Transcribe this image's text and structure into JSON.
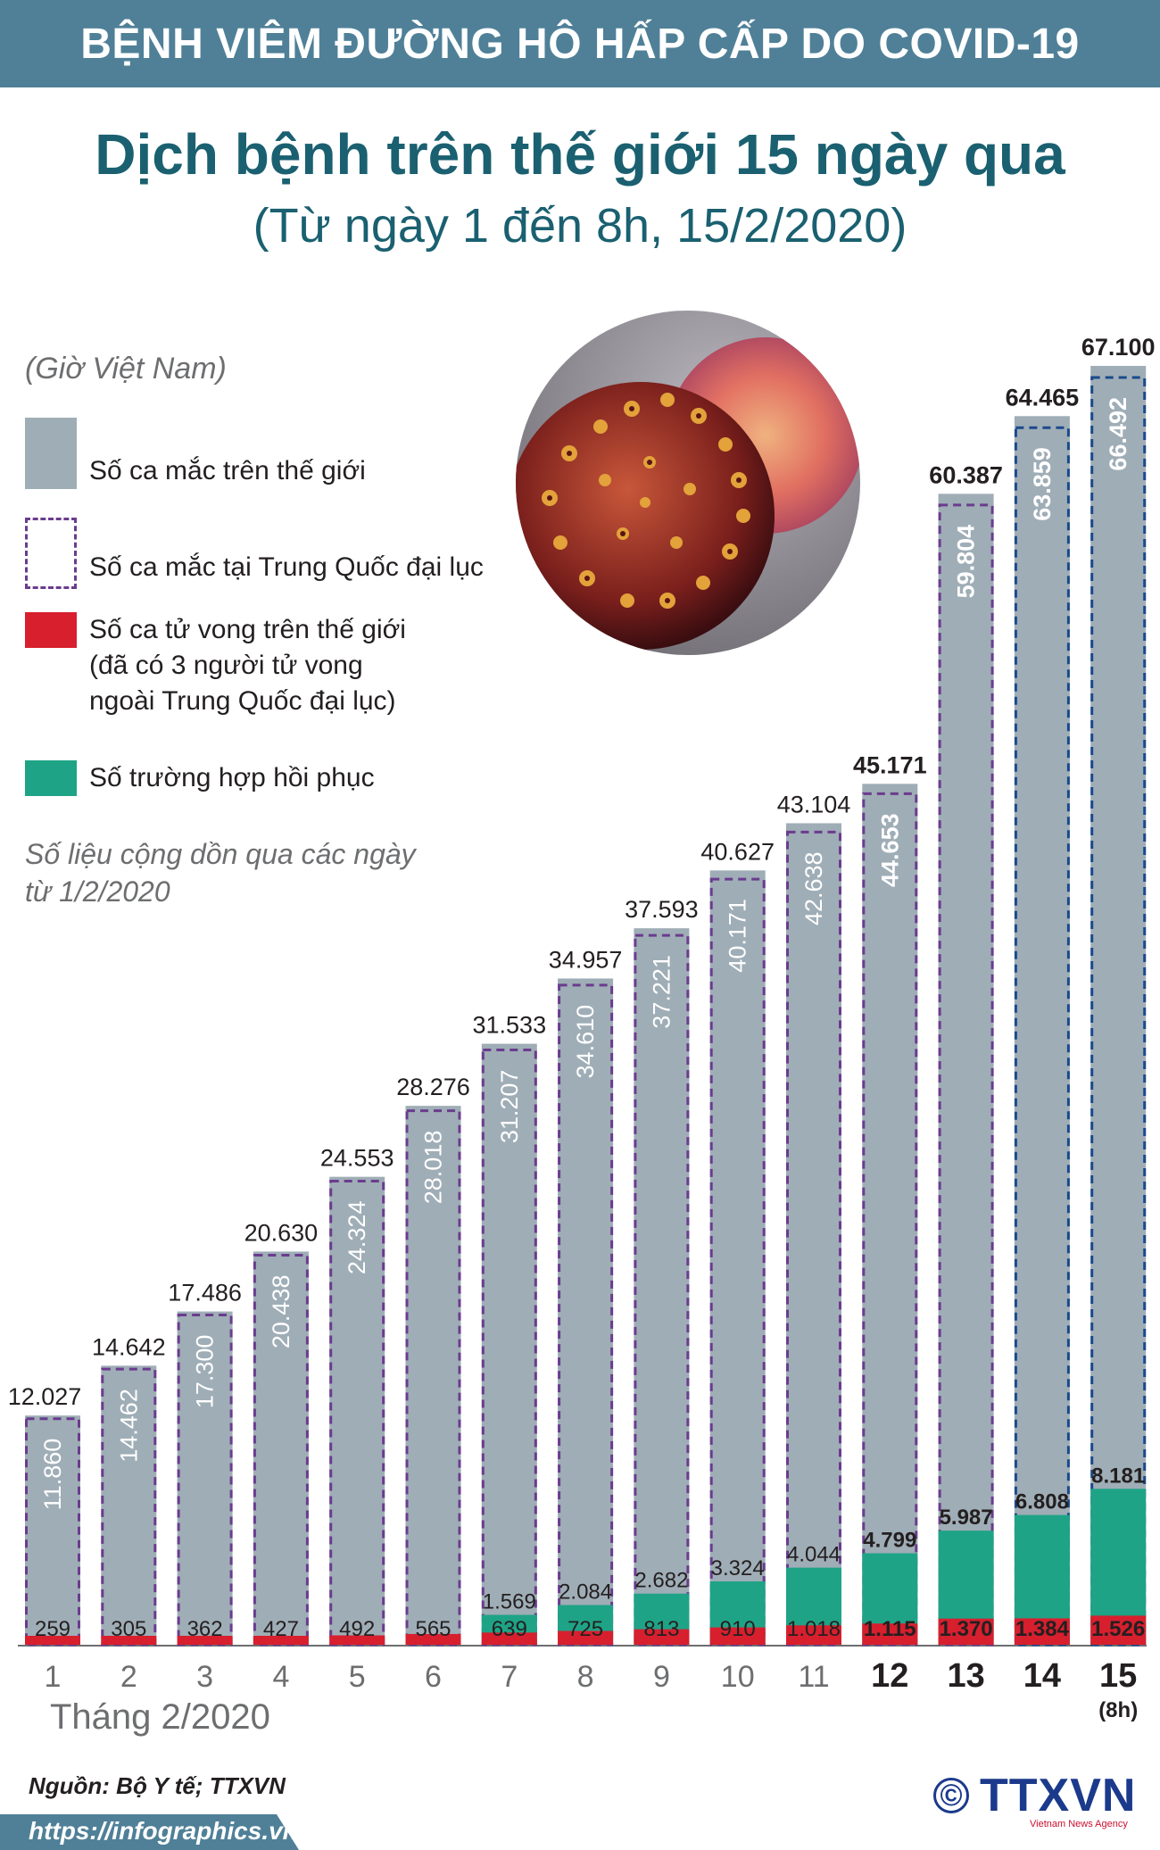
{
  "header": {
    "banner": "BỆNH VIÊM ĐƯỜNG HÔ HẤP CẤP DO COVID-19",
    "title": "Dịch bệnh trên thế giới 15 ngày qua",
    "subtitle": "(Từ ngày 1 đến 8h, 15/2/2020)"
  },
  "legend": {
    "timezone": "(Giờ Việt Nam)",
    "items": [
      {
        "label": "Số ca mắc trên thế giới",
        "color": "#9fadb6"
      },
      {
        "label": "Số ca mắc tại Trung Quốc đại lục",
        "color": "#6a3c8e"
      },
      {
        "label": "Số ca tử vong trên thế giới\n(đã có 3 người tử vong\nngoài Trung Quốc đại lục)",
        "color": "#d71f2e"
      },
      {
        "label": "Số trường hợp hồi phục",
        "color": "#1fa386"
      }
    ],
    "note": "Số liệu cộng dồn qua các ngày từ 1/2/2020"
  },
  "colors": {
    "world": "#9fadb6",
    "china_border_purple": "#6a3c8e",
    "china_border_blue": "#1b4a8c",
    "deaths": "#d71f2e",
    "recovered": "#1fa386",
    "world_label": "#231f20",
    "china_label": "#ffffff"
  },
  "chart_data": {
    "type": "bar",
    "categories": [
      "1",
      "2",
      "3",
      "4",
      "5",
      "6",
      "7",
      "8",
      "9",
      "10",
      "11",
      "12",
      "13",
      "14",
      "15"
    ],
    "category_sublabels": [
      "",
      "",
      "",
      "",
      "",
      "",
      "",
      "",
      "",
      "",
      "",
      "",
      "",
      "",
      "(8h)"
    ],
    "bold_from_index": 11,
    "series": [
      {
        "name": "Số ca mắc trên thế giới",
        "values": [
          12027,
          14642,
          17486,
          20630,
          24553,
          28276,
          31533,
          34957,
          37593,
          40627,
          43104,
          45171,
          60387,
          64465,
          67100
        ],
        "labels": [
          "12.027",
          "14.642",
          "17.486",
          "20.630",
          "24.553",
          "28.276",
          "31.533",
          "34.957",
          "37.593",
          "40.627",
          "43.104",
          "45.171",
          "60.387",
          "64.465",
          "67.100"
        ]
      },
      {
        "name": "Số ca mắc tại Trung Quốc đại lục",
        "values": [
          11860,
          14462,
          17300,
          20438,
          24324,
          28018,
          31207,
          34610,
          37221,
          40171,
          42638,
          44653,
          59804,
          63859,
          66492
        ],
        "labels": [
          "11.860",
          "14.462",
          "17.300",
          "20.438",
          "24.324",
          "28.018",
          "31.207",
          "34.610",
          "37.221",
          "40.171",
          "42.638",
          "44.653",
          "59.804",
          "63.859",
          "66.492"
        ]
      },
      {
        "name": "Số ca tử vong trên thế giới",
        "values": [
          259,
          305,
          362,
          427,
          492,
          565,
          639,
          725,
          813,
          910,
          1018,
          1115,
          1370,
          1384,
          1526
        ],
        "labels": [
          "259",
          "305",
          "362",
          "427",
          "492",
          "565",
          "639",
          "725",
          "813",
          "910",
          "1.018",
          "1.115",
          "1.370",
          "1.384",
          "1.526"
        ]
      },
      {
        "name": "Số trường hợp hồi phục",
        "values": [
          null,
          null,
          null,
          null,
          null,
          null,
          1569,
          2084,
          2682,
          3324,
          4044,
          4799,
          5987,
          6808,
          8181
        ],
        "labels": [
          "",
          "",
          "",
          "",
          "",
          "",
          "1.569",
          "2.084",
          "2.682",
          "3.324",
          "4.044",
          "4.799",
          "5.987",
          "6.808",
          "8.181"
        ]
      }
    ],
    "xlabel": "Tháng 2/2020",
    "ylabel": "",
    "ylim": [
      0,
      67100
    ],
    "grid": false
  },
  "footer": {
    "source": "Nguồn: Bộ Y tế; TTXVN",
    "url": "https://infographics.vn",
    "logo_symbol": "©",
    "logo_text": "TTXVN",
    "logo_sub": "Vietnam News Agency"
  }
}
